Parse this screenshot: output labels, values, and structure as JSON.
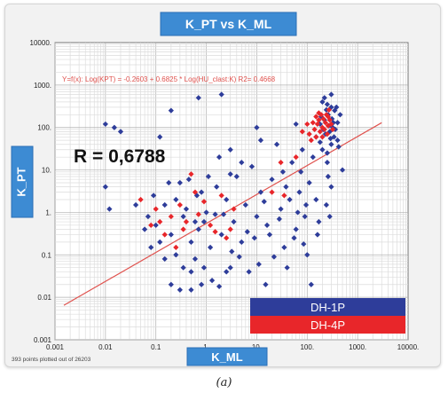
{
  "chart_data": {
    "type": "scatter",
    "title": "K_PT vs K_ML",
    "xlabel": "K_ML",
    "ylabel": "K_PT",
    "xscale": "log",
    "yscale": "log",
    "xlim": [
      0.001,
      10000
    ],
    "ylim": [
      0.001,
      10000
    ],
    "grid": true,
    "x_ticks": [
      "0.001",
      "0.01",
      "0.1",
      "1.",
      "10.",
      "100.",
      "1000.",
      "10000."
    ],
    "y_ticks": [
      "0.001",
      "0.01",
      "0.1",
      "1.",
      "10.",
      "100.",
      "1000.",
      "10000."
    ],
    "regression": {
      "equation": "Y=f(x): Log(KPT) = -0.2603 + 0.6825 * Log(HU_clast:K)  R2= 0.4668",
      "intercept": -0.2603,
      "slope": 0.6825,
      "color": "#e0524e"
    },
    "r_annotation": "R = 0,6788",
    "footer": "393 points plotted out of 26203",
    "legend_placement": "bottom-right",
    "colors": {
      "title_box": "#3d8bd3",
      "grid": "#c8c8c8",
      "plot_bg": "#ffffff"
    },
    "series": [
      {
        "name": "DH-1P",
        "color": "#2e3d9a",
        "points": [
          [
            0.01,
            120
          ],
          [
            0.015,
            100
          ],
          [
            0.02,
            80
          ],
          [
            0.01,
            4
          ],
          [
            0.012,
            1.2
          ],
          [
            0.2,
            250
          ],
          [
            0.7,
            500
          ],
          [
            0.07,
            0.8
          ],
          [
            0.1,
            0.5
          ],
          [
            0.15,
            1.5
          ],
          [
            0.12,
            0.2
          ],
          [
            0.08,
            0.15
          ],
          [
            0.2,
            0.3
          ],
          [
            0.25,
            2
          ],
          [
            0.3,
            5
          ],
          [
            0.35,
            0.8
          ],
          [
            0.4,
            1.2
          ],
          [
            0.5,
            0.2
          ],
          [
            0.6,
            0.08
          ],
          [
            0.7,
            0.4
          ],
          [
            0.8,
            3
          ],
          [
            0.9,
            0.6
          ],
          [
            1,
            1
          ],
          [
            1.2,
            0.15
          ],
          [
            1.5,
            0.9
          ],
          [
            1.8,
            20
          ],
          [
            2,
            0.3
          ],
          [
            2.5,
            2
          ],
          [
            3,
            0.05
          ],
          [
            3.5,
            0.6
          ],
          [
            4,
            7
          ],
          [
            5,
            0.2
          ],
          [
            6,
            1.5
          ],
          [
            7,
            0.04
          ],
          [
            8,
            12
          ],
          [
            10,
            0.8
          ],
          [
            12,
            3
          ],
          [
            15,
            0.02
          ],
          [
            18,
            0.3
          ],
          [
            20,
            6
          ],
          [
            25,
            40
          ],
          [
            30,
            1.2
          ],
          [
            35,
            0.15
          ],
          [
            40,
            0.05
          ],
          [
            45,
            2
          ],
          [
            50,
            15
          ],
          [
            60,
            0.4
          ],
          [
            70,
            3
          ],
          [
            80,
            30
          ],
          [
            90,
            0.8
          ],
          [
            100,
            0.1
          ],
          [
            110,
            5
          ],
          [
            120,
            0.02
          ],
          [
            130,
            20
          ],
          [
            150,
            2
          ],
          [
            0.2,
            0.02
          ],
          [
            0.3,
            0.015
          ],
          [
            0.5,
            0.015
          ],
          [
            0.8,
            0.02
          ],
          [
            1.3,
            0.025
          ],
          [
            1.8,
            0.018
          ],
          [
            0.5,
            0.04
          ],
          [
            0.35,
            0.05
          ],
          [
            0.9,
            0.05
          ],
          [
            2.5,
            0.04
          ],
          [
            0.15,
            0.08
          ],
          [
            0.25,
            0.1
          ],
          [
            0.6,
            0.6
          ],
          [
            1.6,
            4
          ],
          [
            3,
            8
          ],
          [
            5,
            15
          ],
          [
            12,
            50
          ],
          [
            0.04,
            1.5
          ],
          [
            0.06,
            0.4
          ],
          [
            0.09,
            2.5
          ],
          [
            0.18,
            5
          ],
          [
            0.45,
            6
          ],
          [
            0.65,
            2.5
          ],
          [
            1.1,
            7
          ],
          [
            2.2,
            0.9
          ],
          [
            3.2,
            0.12
          ],
          [
            4.5,
            0.09
          ],
          [
            6.5,
            0.35
          ],
          [
            9,
            0.25
          ],
          [
            11,
            0.06
          ],
          [
            14,
            1.8
          ],
          [
            16,
            0.5
          ],
          [
            22,
            0.09
          ],
          [
            28,
            0.7
          ],
          [
            33,
            9
          ],
          [
            38,
            4
          ],
          [
            55,
            0.25
          ],
          [
            65,
            1
          ],
          [
            75,
            9
          ],
          [
            85,
            0.18
          ],
          [
            95,
            1.5
          ],
          [
            170,
            0.6
          ],
          [
            200,
            30
          ],
          [
            250,
            25
          ],
          [
            300,
            40
          ],
          [
            400,
            50
          ],
          [
            150,
            60
          ],
          [
            180,
            120
          ],
          [
            220,
            150
          ],
          [
            260,
            200
          ],
          [
            300,
            300
          ],
          [
            350,
            250
          ],
          [
            280,
            80
          ],
          [
            320,
            100
          ],
          [
            230,
            70
          ],
          [
            200,
            400
          ],
          [
            250,
            350
          ],
          [
            190,
            180
          ],
          [
            270,
            110
          ],
          [
            310,
            160
          ],
          [
            240,
            260
          ],
          [
            330,
            130
          ],
          [
            360,
            90
          ],
          [
            210,
            90
          ],
          [
            400,
            130
          ],
          [
            180,
            45
          ],
          [
            290,
            55
          ],
          [
            340,
            60
          ],
          [
            250,
            15
          ],
          [
            420,
            35
          ],
          [
            260,
            7
          ],
          [
            300,
            4
          ],
          [
            240,
            1.5
          ],
          [
            160,
            0.3
          ],
          [
            280,
            0.8
          ],
          [
            500,
            10
          ],
          [
            450,
            200
          ],
          [
            380,
            300
          ],
          [
            220,
            500
          ],
          [
            300,
            600
          ],
          [
            60,
            120
          ],
          [
            10,
            100
          ],
          [
            3,
            30
          ],
          [
            2,
            600
          ],
          [
            0.12,
            60
          ]
        ]
      },
      {
        "name": "DH-4P",
        "color": "#e8262a",
        "points": [
          [
            150,
            60
          ],
          [
            180,
            80
          ],
          [
            120,
            50
          ],
          [
            200,
            100
          ],
          [
            160,
            120
          ],
          [
            220,
            90
          ],
          [
            250,
            70
          ],
          [
            140,
            90
          ],
          [
            170,
            150
          ],
          [
            230,
            130
          ],
          [
            260,
            110
          ],
          [
            190,
            200
          ],
          [
            130,
            130
          ],
          [
            210,
            160
          ],
          [
            100,
            120
          ],
          [
            280,
            150
          ],
          [
            240,
            200
          ],
          [
            300,
            120
          ],
          [
            320,
            90
          ],
          [
            150,
            180
          ],
          [
            260,
            180
          ],
          [
            200,
            60
          ],
          [
            170,
            220
          ],
          [
            110,
            70
          ],
          [
            80,
            80
          ],
          [
            270,
            260
          ],
          [
            60,
            20
          ],
          [
            30,
            15
          ],
          [
            20,
            3
          ],
          [
            35,
            2.5
          ],
          [
            0.05,
            2
          ],
          [
            0.08,
            0.5
          ],
          [
            0.1,
            1.2
          ],
          [
            0.15,
            0.3
          ],
          [
            0.2,
            0.8
          ],
          [
            0.3,
            1.5
          ],
          [
            0.4,
            0.6
          ],
          [
            0.5,
            8
          ],
          [
            0.6,
            3
          ],
          [
            0.7,
            0.9
          ],
          [
            0.9,
            1.8
          ],
          [
            1.2,
            0.5
          ],
          [
            1.5,
            0.35
          ],
          [
            2,
            2.5
          ],
          [
            2.5,
            0.25
          ],
          [
            3,
            0.4
          ],
          [
            3.5,
            1.2
          ],
          [
            0.25,
            0.15
          ],
          [
            0.35,
            0.4
          ],
          [
            0.12,
            0.6
          ]
        ]
      }
    ]
  }
}
